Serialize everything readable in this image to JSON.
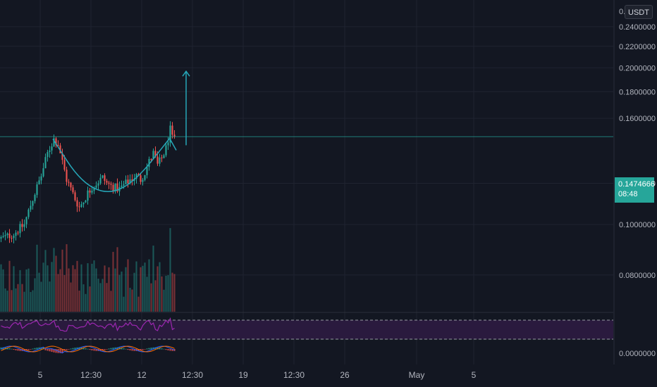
{
  "symbol": {
    "currency": "USDT"
  },
  "last_price": {
    "value": "0.1474666",
    "countdown": "08:48"
  },
  "colors": {
    "background": "#131722",
    "up": "#26a69a",
    "down": "#ef5350",
    "rsi": "#9c27b0",
    "rsi_band": "#2a1a3e",
    "pattern": "#26a6b8",
    "grid": "#1f2330"
  },
  "chart_data": [
    {
      "type": "candlestick",
      "pane": "price",
      "y_scale": "log",
      "ylim": [
        0.068,
        0.27
      ],
      "y_tick_labels": [
        "0.2400000",
        "0.2200000",
        "0.2000000",
        "0.1800000",
        "0.1600000",
        "0.1200000",
        "0.1000000",
        "0.0800000"
      ],
      "y_tick_values": [
        0.24,
        0.22,
        0.2,
        0.18,
        0.16,
        0.12,
        0.1,
        0.08
      ],
      "x_tick_labels": [
        "5",
        "12:30",
        "12",
        "12:30",
        "19",
        "12:30",
        "26",
        "May",
        "5"
      ],
      "x_tick_index": [
        19,
        43,
        67,
        91,
        115,
        139,
        163,
        197,
        224
      ],
      "x_range": [
        0,
        290
      ],
      "close_anchors": [
        [
          0,
          0.094
        ],
        [
          6,
          0.096
        ],
        [
          11,
          0.1
        ],
        [
          15,
          0.112
        ],
        [
          19,
          0.124
        ],
        [
          22,
          0.137
        ],
        [
          25,
          0.146
        ],
        [
          27,
          0.143
        ],
        [
          29,
          0.132
        ],
        [
          31,
          0.122
        ],
        [
          33,
          0.117
        ],
        [
          35,
          0.112
        ],
        [
          37,
          0.108
        ],
        [
          39,
          0.111
        ],
        [
          41,
          0.115
        ],
        [
          43,
          0.118
        ],
        [
          46,
          0.121
        ],
        [
          48,
          0.123
        ],
        [
          50,
          0.12
        ],
        [
          53,
          0.118
        ],
        [
          56,
          0.117
        ],
        [
          58,
          0.119
        ],
        [
          61,
          0.122
        ],
        [
          64,
          0.124
        ],
        [
          66,
          0.122
        ],
        [
          68,
          0.126
        ],
        [
          70,
          0.132
        ],
        [
          72,
          0.137
        ],
        [
          74,
          0.13
        ],
        [
          76,
          0.134
        ],
        [
          78,
          0.14
        ],
        [
          80,
          0.152
        ],
        [
          81,
          0.146
        ],
        [
          82,
          0.14
        ]
      ],
      "series_note": "",
      "last_price": 0.1474666,
      "annotations": {
        "cup_curve": [
          [
            25,
            0.146
          ],
          [
            38,
            0.121
          ],
          [
            51,
            0.114
          ],
          [
            64,
            0.121
          ],
          [
            80,
            0.146
          ]
        ],
        "target_arrow": {
          "x": 88,
          "from": 0.142,
          "to": 0.197
        }
      }
    },
    {
      "type": "bar",
      "pane": "volume",
      "values_note": "",
      "values": []
    },
    {
      "type": "line",
      "pane": "rsi",
      "band": [
        30,
        70
      ],
      "values": []
    },
    {
      "type": "line",
      "pane": "macd",
      "y_tick_labels": [
        "0.0000000"
      ],
      "y_tick_values": [
        0
      ],
      "series": []
    }
  ]
}
